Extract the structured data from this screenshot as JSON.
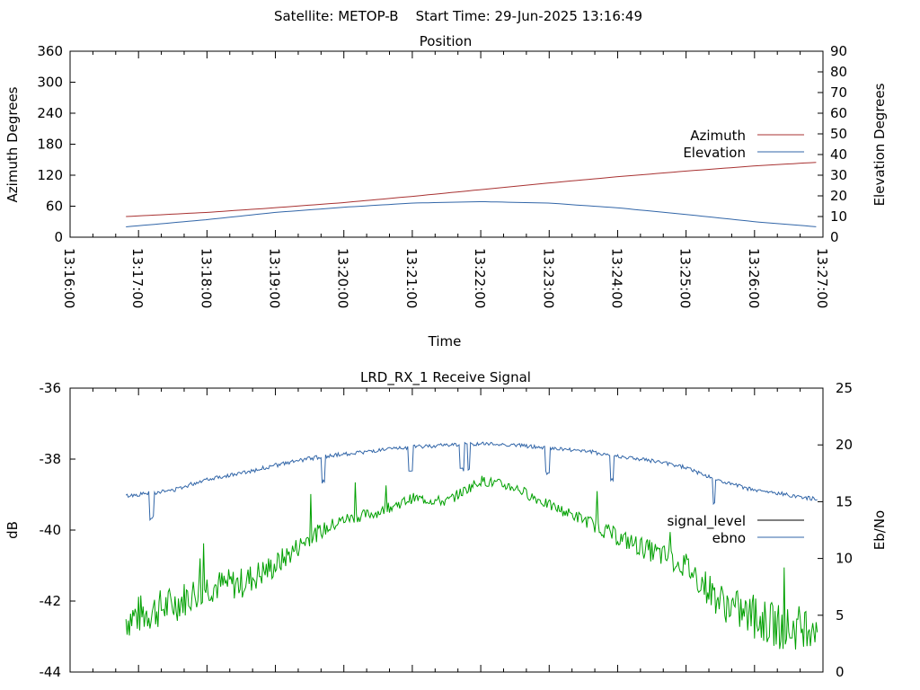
{
  "title": "Satellite: METOP-B    Start Time: 29-Jun-2025 13:16:49",
  "colors": {
    "azimuth": "#a83232",
    "elevation": "#3266a8",
    "signal_level": "#000000",
    "ebno": "#3266a8",
    "signal_trace": "#00a000"
  },
  "chart_data": [
    {
      "type": "line",
      "title": "Position",
      "xlabel": "Time",
      "ylabel": "Azimuth Degrees",
      "y2label": "Elevation Degrees",
      "xlim": [
        "13:16:00",
        "13:27:00"
      ],
      "ylim": [
        0,
        360
      ],
      "y2lim": [
        0,
        90
      ],
      "grid": false,
      "legend_position": "right",
      "x_ticks": [
        "13:16:00",
        "13:17:00",
        "13:18:00",
        "13:19:00",
        "13:20:00",
        "13:21:00",
        "13:22:00",
        "13:23:00",
        "13:24:00",
        "13:25:00",
        "13:26:00",
        "13:27:00"
      ],
      "y_ticks": [
        0,
        60,
        120,
        180,
        240,
        300,
        360
      ],
      "y2_ticks": [
        0,
        10,
        20,
        30,
        40,
        50,
        60,
        70,
        80,
        90
      ],
      "series": [
        {
          "name": "Azimuth",
          "axis": "y",
          "x": [
            "13:16:49",
            "13:18:00",
            "13:19:00",
            "13:20:00",
            "13:21:00",
            "13:22:00",
            "13:23:00",
            "13:24:00",
            "13:25:00",
            "13:26:00",
            "13:26:55"
          ],
          "values": [
            40,
            48,
            57,
            67,
            79,
            92,
            105,
            117,
            128,
            138,
            145
          ]
        },
        {
          "name": "Elevation",
          "axis": "y2",
          "x": [
            "13:16:49",
            "13:17:30",
            "13:18:00",
            "13:19:00",
            "13:20:00",
            "13:21:00",
            "13:22:00",
            "13:23:00",
            "13:24:00",
            "13:25:00",
            "13:26:00",
            "13:26:55"
          ],
          "values": [
            5,
            7,
            8.5,
            12,
            14.5,
            16.5,
            17.2,
            16.5,
            14.2,
            11,
            7.5,
            5
          ]
        }
      ]
    },
    {
      "type": "line",
      "title": "LRD_RX_1 Receive Signal",
      "ylabel": "dB",
      "y2label": "Eb/No",
      "xlim": [
        "13:16:00",
        "13:27:00"
      ],
      "ylim": [
        -44,
        -36
      ],
      "y2lim": [
        0,
        25
      ],
      "grid": false,
      "legend_position": "right",
      "y_ticks": [
        -44,
        -42,
        -40,
        -38,
        -36
      ],
      "y2_ticks": [
        0,
        5,
        10,
        15,
        20,
        25
      ],
      "series": [
        {
          "name": "signal_level",
          "axis": "y",
          "x": [
            "13:16:49",
            "13:17:30",
            "13:18:00",
            "13:18:30",
            "13:19:00",
            "13:19:30",
            "13:20:00",
            "13:20:30",
            "13:21:00",
            "13:21:30",
            "13:22:00",
            "13:22:30",
            "13:23:00",
            "13:23:30",
            "13:24:00",
            "13:24:30",
            "13:25:00",
            "13:25:30",
            "13:26:00",
            "13:26:30",
            "13:26:55"
          ],
          "values": [
            -42.5,
            -42.1,
            -41.6,
            -41.5,
            -41.0,
            -40.2,
            -39.7,
            -39.5,
            -39.1,
            -39.2,
            -38.6,
            -38.8,
            -39.3,
            -39.7,
            -40.2,
            -40.6,
            -41.0,
            -42.0,
            -42.5,
            -42.8,
            -42.6
          ]
        },
        {
          "name": "ebno",
          "axis": "y2",
          "x": [
            "13:16:49",
            "13:17:30",
            "13:18:00",
            "13:18:30",
            "13:19:00",
            "13:19:30",
            "13:20:00",
            "13:20:30",
            "13:21:00",
            "13:21:30",
            "13:22:00",
            "13:22:30",
            "13:23:00",
            "13:23:30",
            "13:24:00",
            "13:24:30",
            "13:25:00",
            "13:25:30",
            "13:26:00",
            "13:26:30",
            "13:26:55"
          ],
          "values": [
            15.5,
            16.0,
            17.0,
            17.5,
            18.2,
            18.8,
            19.2,
            19.5,
            19.8,
            20.0,
            20.1,
            20.0,
            19.7,
            19.5,
            19.0,
            18.6,
            18.0,
            16.8,
            16.0,
            15.6,
            15.2
          ]
        }
      ]
    }
  ]
}
